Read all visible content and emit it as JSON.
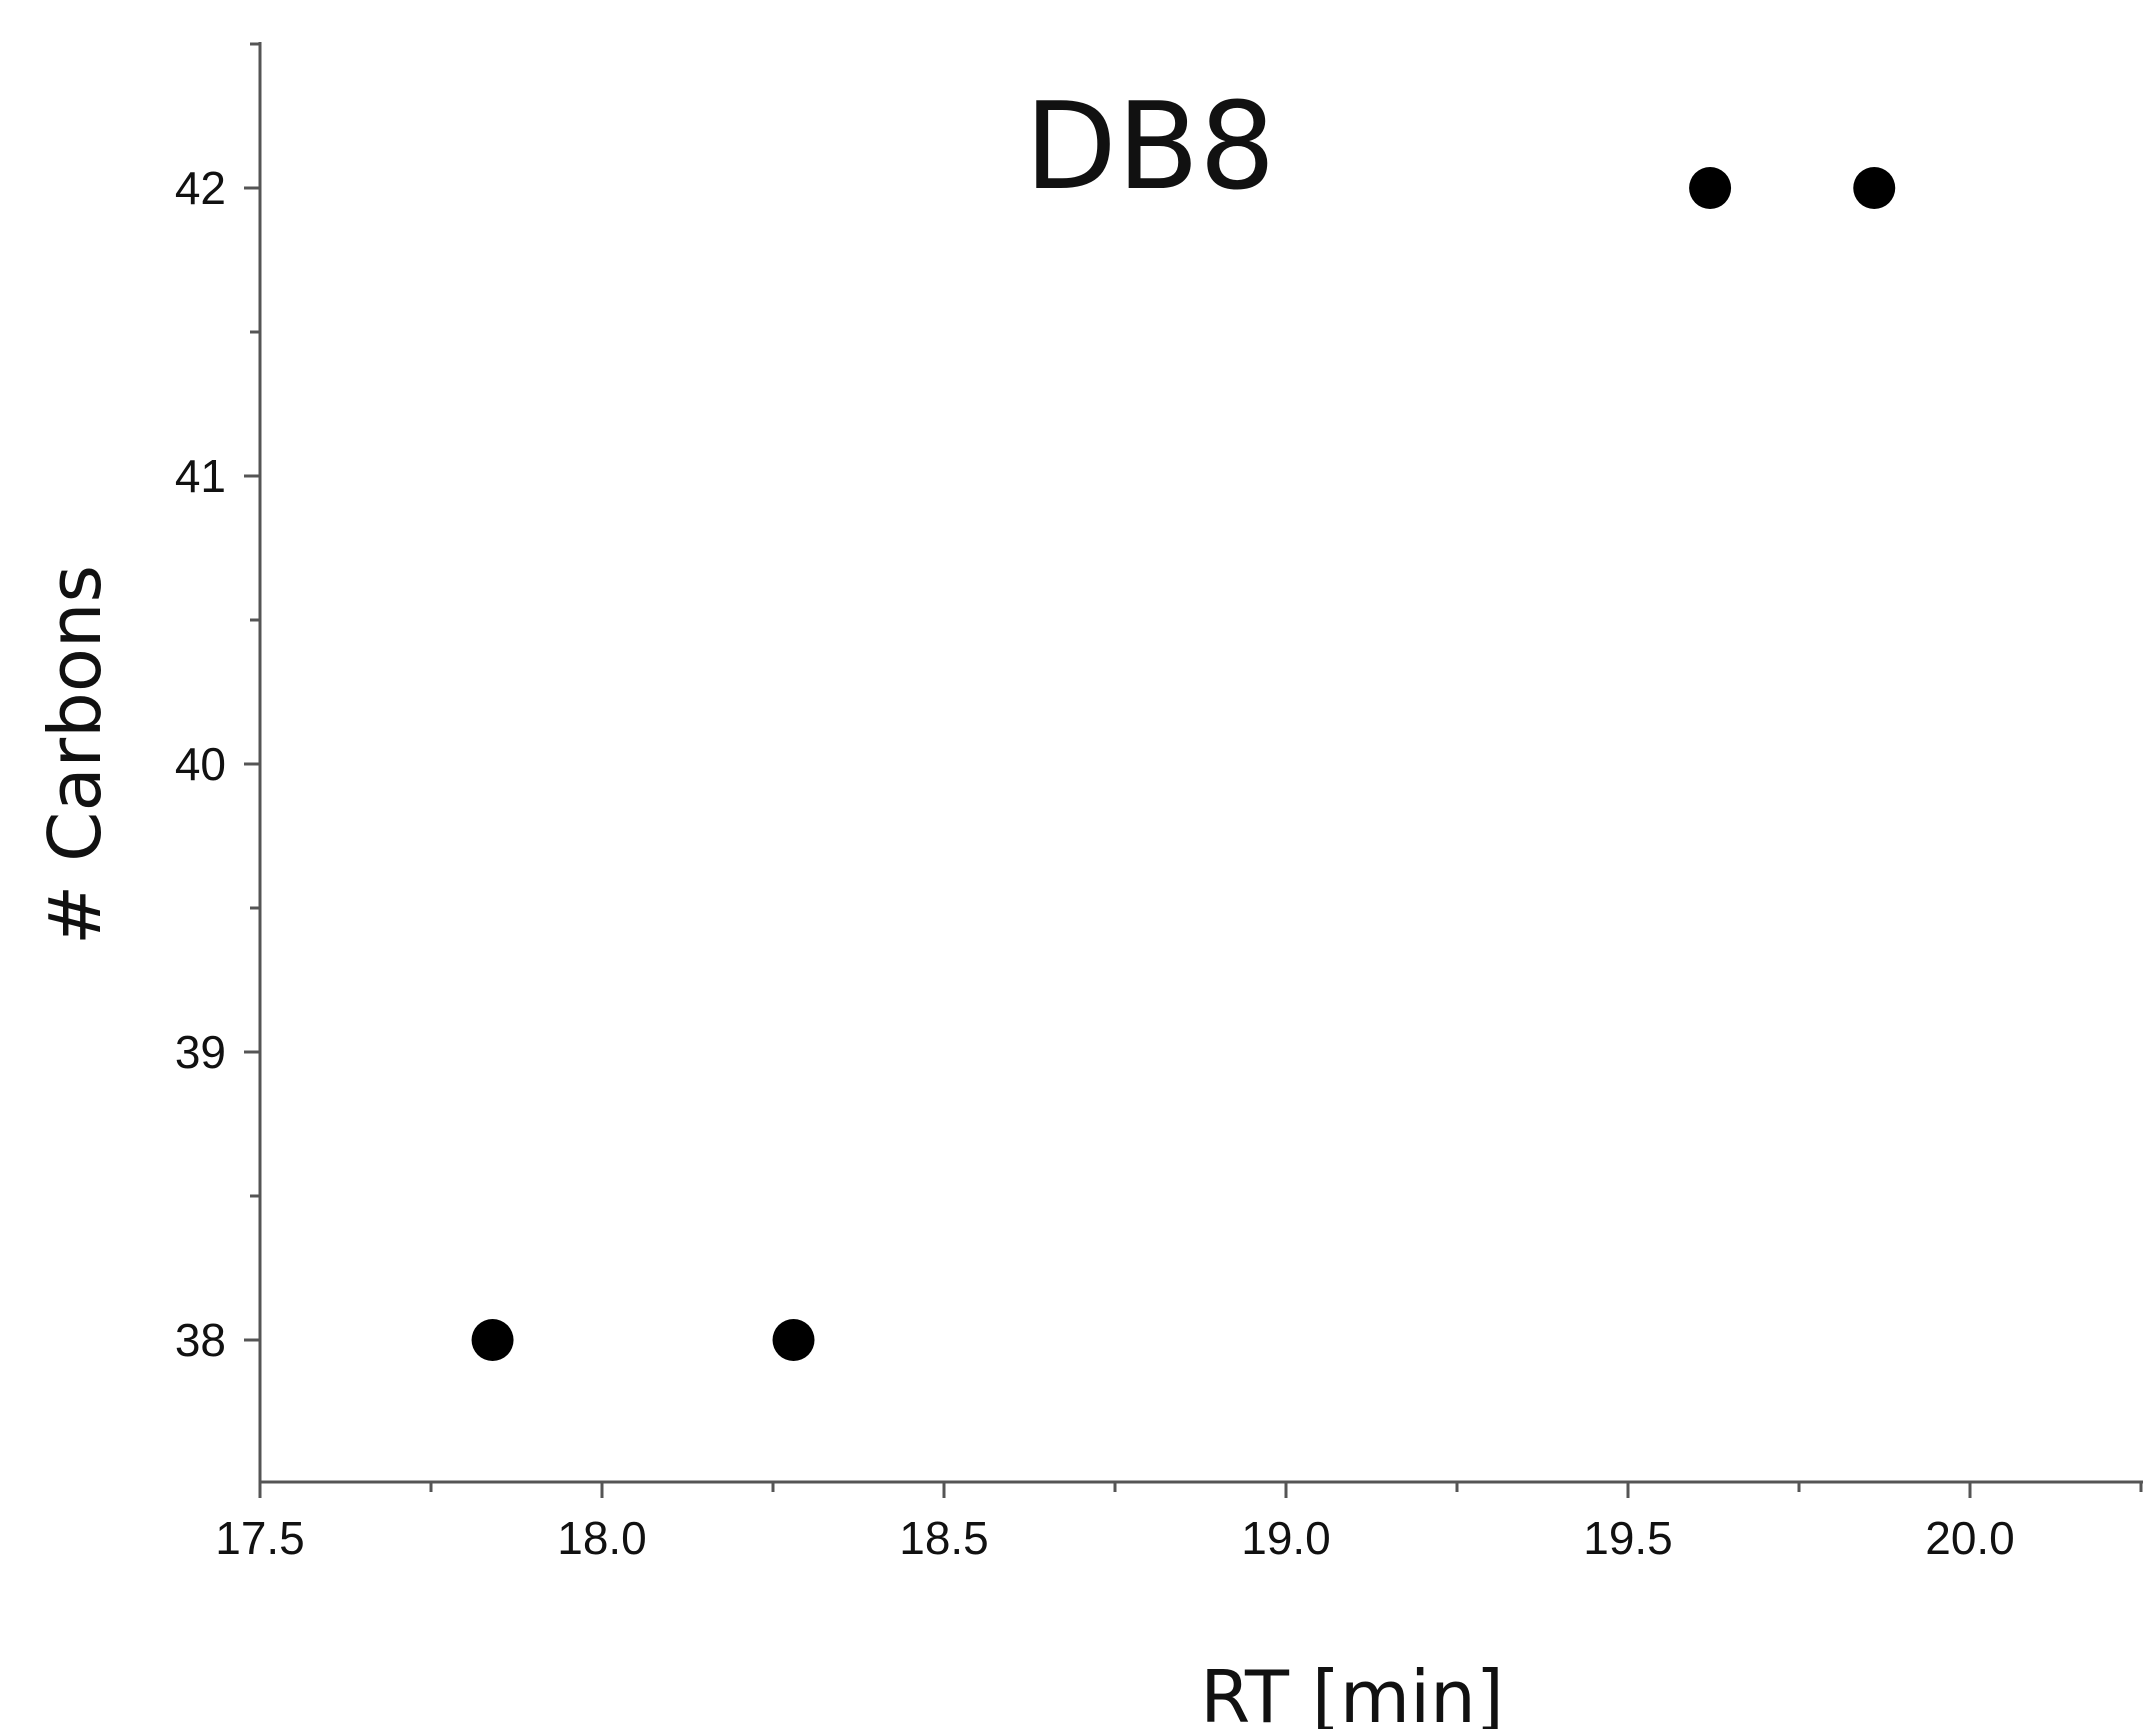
{
  "chart_data": {
    "type": "scatter",
    "title": "DB8",
    "xlabel": "RT [min]",
    "ylabel": "# Carbons",
    "xlim": [
      17.5,
      20.25
    ],
    "ylim": [
      37.5,
      42.5
    ],
    "x_ticks": [
      "17.5",
      "18.0",
      "18.5",
      "19.0",
      "19.5",
      "20.0"
    ],
    "y_ticks": [
      "38",
      "39",
      "40",
      "41",
      "42"
    ],
    "grid": false,
    "legend": "none",
    "series": [
      {
        "points": [
          {
            "x": 17.84,
            "y": 38
          },
          {
            "x": 18.28,
            "y": 38
          },
          {
            "x": 19.62,
            "y": 42
          },
          {
            "x": 19.86,
            "y": 42
          }
        ]
      }
    ],
    "marker_color": "#000000"
  }
}
